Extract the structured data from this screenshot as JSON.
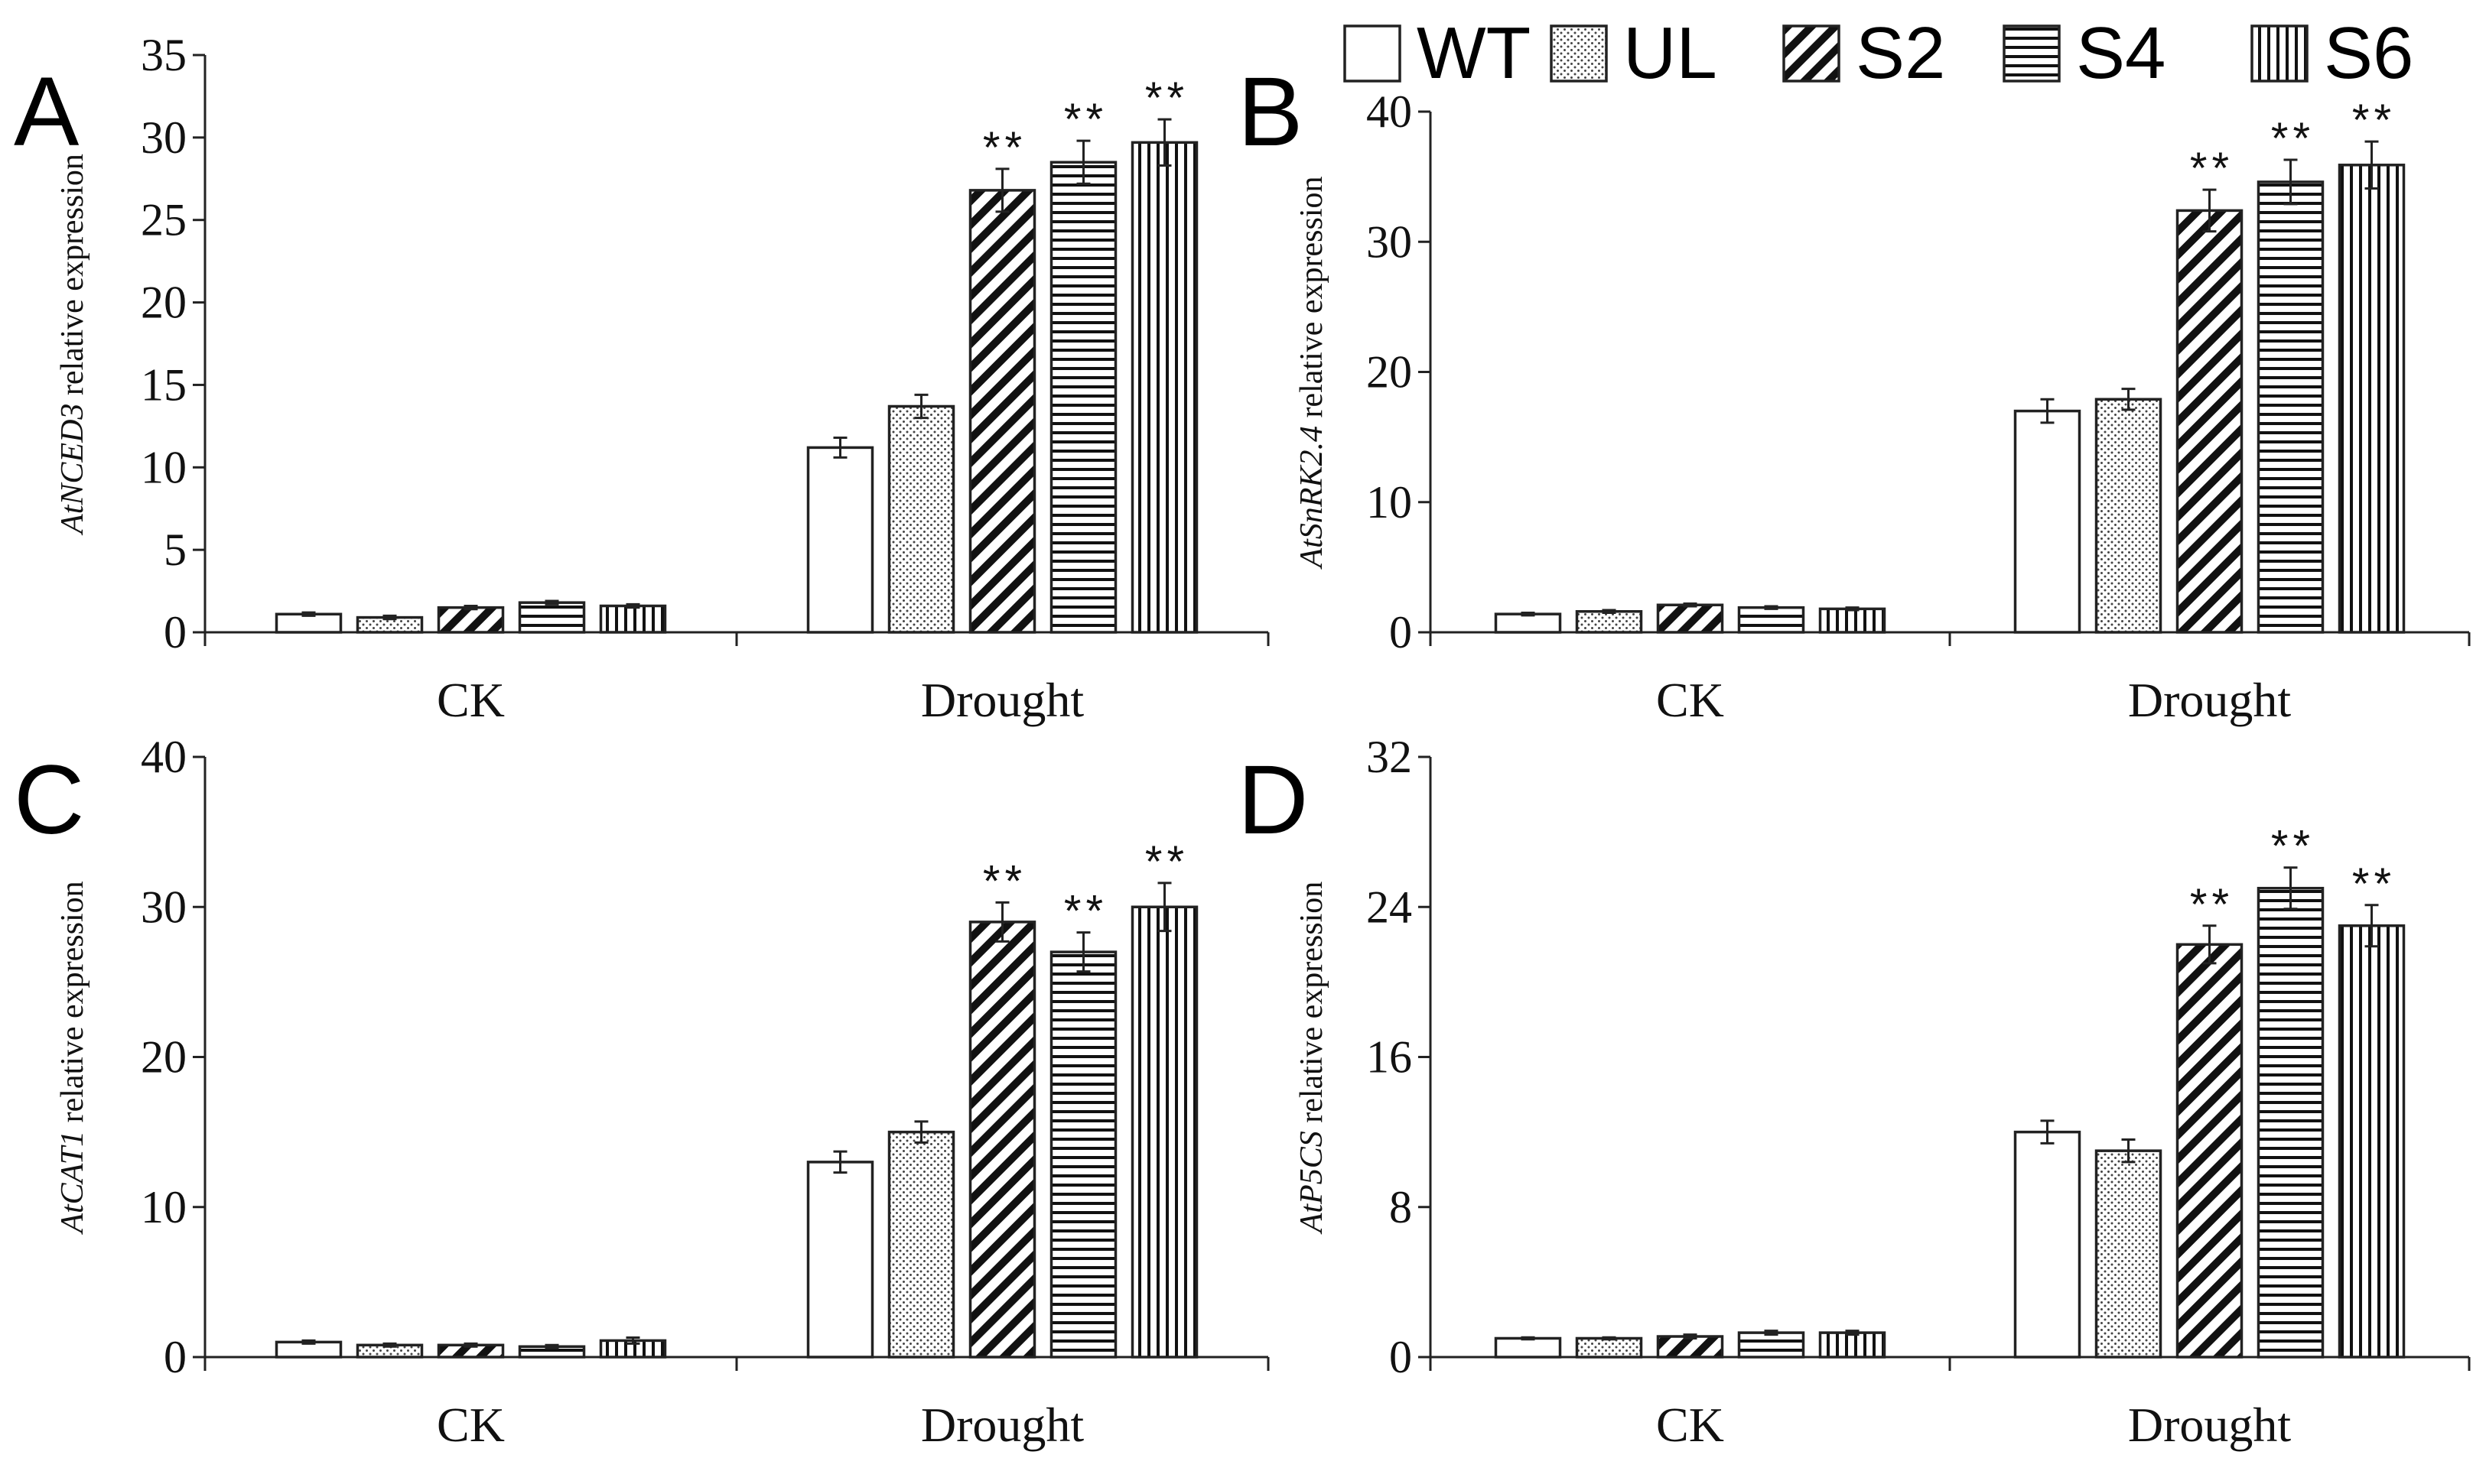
{
  "legend": {
    "series": [
      {
        "name": "WT",
        "pattern": "plain"
      },
      {
        "name": "UL",
        "pattern": "dots"
      },
      {
        "name": "S2",
        "pattern": "diag"
      },
      {
        "name": "S4",
        "pattern": "horiz"
      },
      {
        "name": "S6",
        "pattern": "vert"
      }
    ]
  },
  "chart_data": [
    {
      "panel": "A",
      "type": "bar",
      "ylabel_gene": "AtNCED3",
      "ylabel_rest": " relative expression",
      "categories": [
        "CK",
        "Drought"
      ],
      "ylim": [
        0,
        35
      ],
      "yticks": [
        0,
        5,
        10,
        15,
        20,
        25,
        30,
        35
      ],
      "series": [
        {
          "name": "WT",
          "values": [
            1.1,
            11.2
          ],
          "errors": [
            0.1,
            0.6
          ],
          "sig": [
            "",
            ""
          ]
        },
        {
          "name": "UL",
          "values": [
            0.9,
            13.7
          ],
          "errors": [
            0.1,
            0.7
          ],
          "sig": [
            "",
            ""
          ]
        },
        {
          "name": "S2",
          "values": [
            1.5,
            26.8
          ],
          "errors": [
            0.1,
            1.3
          ],
          "sig": [
            "",
            "**"
          ]
        },
        {
          "name": "S4",
          "values": [
            1.8,
            28.5
          ],
          "errors": [
            0.1,
            1.3
          ],
          "sig": [
            "",
            "**"
          ]
        },
        {
          "name": "S6",
          "values": [
            1.6,
            29.7
          ],
          "errors": [
            0.1,
            1.4
          ],
          "sig": [
            "",
            "**"
          ]
        }
      ]
    },
    {
      "panel": "B",
      "type": "bar",
      "ylabel_gene": "AtSnRK2.4",
      "ylabel_rest": " relative expression",
      "categories": [
        "CK",
        "Drought"
      ],
      "ylim": [
        0,
        40
      ],
      "yticks": [
        0,
        10,
        20,
        30,
        40
      ],
      "series": [
        {
          "name": "WT",
          "values": [
            1.4,
            17.0
          ],
          "errors": [
            0.1,
            0.9
          ],
          "sig": [
            "",
            ""
          ]
        },
        {
          "name": "UL",
          "values": [
            1.6,
            17.9
          ],
          "errors": [
            0.1,
            0.8
          ],
          "sig": [
            "",
            ""
          ]
        },
        {
          "name": "S2",
          "values": [
            2.1,
            32.4
          ],
          "errors": [
            0.1,
            1.6
          ],
          "sig": [
            "",
            "**"
          ]
        },
        {
          "name": "S4",
          "values": [
            1.9,
            34.6
          ],
          "errors": [
            0.1,
            1.7
          ],
          "sig": [
            "",
            "**"
          ]
        },
        {
          "name": "S6",
          "values": [
            1.8,
            35.9
          ],
          "errors": [
            0.1,
            1.8
          ],
          "sig": [
            "",
            "**"
          ]
        }
      ]
    },
    {
      "panel": "C",
      "type": "bar",
      "ylabel_gene": "AtCAT1",
      "ylabel_rest": " relative expression",
      "categories": [
        "CK",
        "Drought"
      ],
      "ylim": [
        0,
        40
      ],
      "yticks": [
        0,
        10,
        20,
        30,
        40
      ],
      "series": [
        {
          "name": "WT",
          "values": [
            1.0,
            13.0
          ],
          "errors": [
            0.1,
            0.7
          ],
          "sig": [
            "",
            ""
          ]
        },
        {
          "name": "UL",
          "values": [
            0.8,
            15.0
          ],
          "errors": [
            0.1,
            0.7
          ],
          "sig": [
            "",
            ""
          ]
        },
        {
          "name": "S2",
          "values": [
            0.8,
            29.0
          ],
          "errors": [
            0.1,
            1.3
          ],
          "sig": [
            "",
            "**"
          ]
        },
        {
          "name": "S4",
          "values": [
            0.7,
            27.0
          ],
          "errors": [
            0.1,
            1.3
          ],
          "sig": [
            "",
            "**"
          ]
        },
        {
          "name": "S6",
          "values": [
            1.1,
            30.0
          ],
          "errors": [
            0.2,
            1.6
          ],
          "sig": [
            "",
            "**"
          ]
        }
      ]
    },
    {
      "panel": "D",
      "type": "bar",
      "ylabel_gene": "AtP5CS",
      "ylabel_rest": " relative expression",
      "categories": [
        "CK",
        "Drought"
      ],
      "ylim": [
        0,
        32
      ],
      "yticks": [
        0,
        8,
        16,
        24,
        32
      ],
      "series": [
        {
          "name": "WT",
          "values": [
            1.0,
            12.0
          ],
          "errors": [
            0.05,
            0.6
          ],
          "sig": [
            "",
            ""
          ]
        },
        {
          "name": "UL",
          "values": [
            1.0,
            11.0
          ],
          "errors": [
            0.05,
            0.6
          ],
          "sig": [
            "",
            ""
          ]
        },
        {
          "name": "S2",
          "values": [
            1.1,
            22.0
          ],
          "errors": [
            0.1,
            1.0
          ],
          "sig": [
            "",
            "**"
          ]
        },
        {
          "name": "S4",
          "values": [
            1.3,
            25.0
          ],
          "errors": [
            0.1,
            1.1
          ],
          "sig": [
            "",
            "**"
          ]
        },
        {
          "name": "S6",
          "values": [
            1.3,
            23.0
          ],
          "errors": [
            0.1,
            1.1
          ],
          "sig": [
            "",
            "**"
          ]
        }
      ]
    }
  ]
}
